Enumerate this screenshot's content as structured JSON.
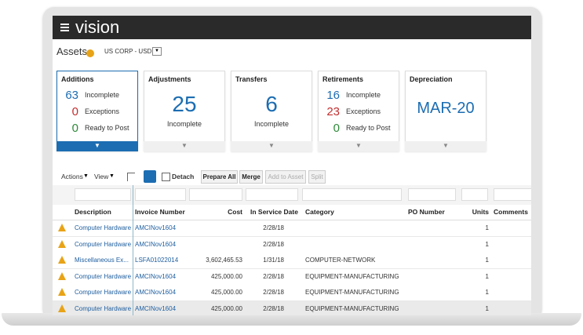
{
  "header": {
    "brand": "vision"
  },
  "page": {
    "title": "Assets",
    "book": "US CORP - USD"
  },
  "cards": [
    {
      "title": "Additions",
      "items": [
        {
          "count": 63,
          "label": "Incomplete"
        },
        {
          "count": 0,
          "label": "Exceptions"
        },
        {
          "count": 0,
          "label": "Ready to Post"
        }
      ]
    },
    {
      "title": "Adjustments",
      "count": 25,
      "label": "Incomplete"
    },
    {
      "title": "Transfers",
      "count": 6,
      "label": "Incomplete"
    },
    {
      "title": "Retirements",
      "items": [
        {
          "count": 16,
          "label": "Incomplete"
        },
        {
          "count": 23,
          "label": "Exceptions"
        },
        {
          "count": 0,
          "label": "Ready to Post"
        }
      ]
    },
    {
      "title": "Depreciation",
      "period": "MAR-20"
    }
  ],
  "toolbar": {
    "actions": "Actions",
    "view": "View",
    "detach": "Detach",
    "buttons": [
      "Prepare All",
      "Merge",
      "Add to Asset",
      "Split"
    ]
  },
  "table": {
    "columns": [
      "Description",
      "Invoice Number",
      "Cost",
      "In Service Date",
      "Category",
      "PO Number",
      "Units",
      "Comments"
    ],
    "rows": [
      [
        "Computer Hardware",
        "AMCINov1604",
        null,
        "2/28/18",
        null,
        null,
        "1",
        null
      ],
      [
        "Computer Hardware",
        "AMCINov1604",
        null,
        "2/28/18",
        null,
        null,
        "1",
        null
      ],
      [
        "Miscellaneous Ex...",
        "LSFA01022014",
        "3,602,465.53",
        "1/31/18",
        "COMPUTER-NETWORK",
        null,
        "1",
        null
      ],
      [
        "Computer Hardware",
        "AMCINov1604",
        "425,000.00",
        "2/28/18",
        "EQUIPMENT-MANUFACTURING",
        null,
        "1",
        null
      ],
      [
        "Computer Hardware",
        "AMCINov1604",
        "425,000.00",
        "2/28/18",
        "EQUIPMENT-MANUFACTURING",
        null,
        "1",
        null
      ],
      [
        "Computer Hardware",
        "AMCINov1604",
        "425,000.00",
        "2/28/18",
        "EQUIPMENT-MANUFACTURING",
        null,
        "1",
        null
      ]
    ]
  }
}
